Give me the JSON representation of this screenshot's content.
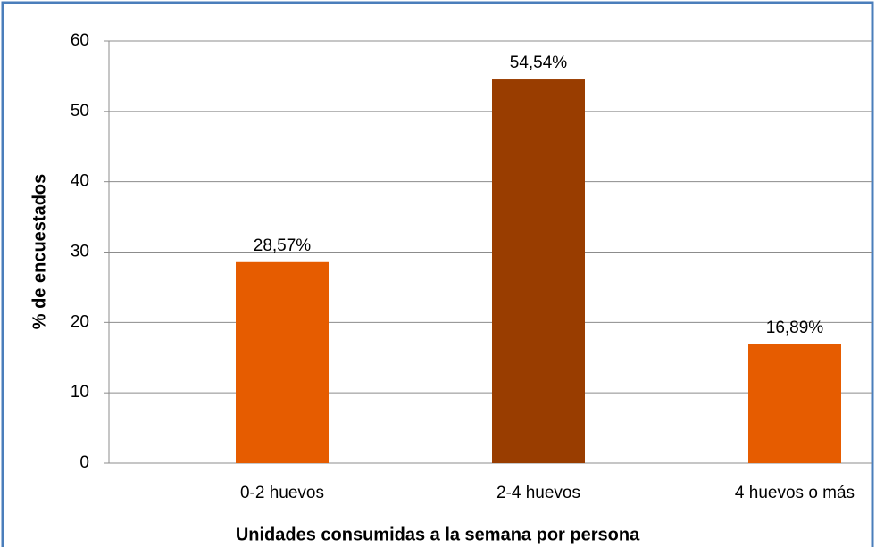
{
  "chart_data": {
    "type": "bar",
    "categories": [
      "0-2 huevos",
      "2-4 huevos",
      "4 huevos o más"
    ],
    "values": [
      28.57,
      54.54,
      16.89
    ],
    "value_labels": [
      "28,57%",
      "54,54%",
      "16,89%"
    ],
    "colors": [
      "#e65c00",
      "#993d00",
      "#e65c00"
    ],
    "ylim": [
      0,
      60
    ],
    "yticks": [
      0,
      10,
      20,
      30,
      40,
      50,
      60
    ],
    "grid": true,
    "x_label": "Unidades consumidas a la semana por persona",
    "y_label": "% de encuestados"
  }
}
